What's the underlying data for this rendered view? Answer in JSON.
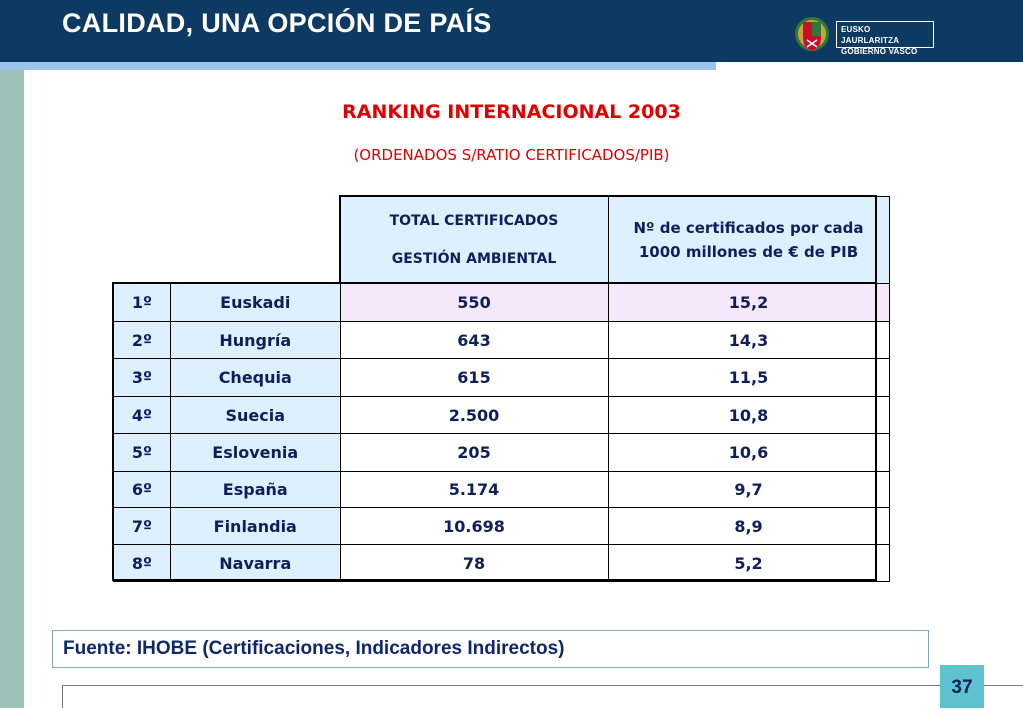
{
  "header": {
    "title": "CALIDAD, UNA OPCIÓN DE PAÍS",
    "logo_line1": "EUSKO JAURLARITZA",
    "logo_line2": "GOBIERNO VASCO"
  },
  "slide": {
    "title": "RANKING INTERNACIONAL 2003",
    "subtitle": "(ORDENADOS S/RATIO CERTIFICADOS/PIB)"
  },
  "table": {
    "col1_header_line1": "TOTAL CERTIFICADOS",
    "col1_header_line2": "GESTIÓN AMBIENTAL",
    "col2_header": "Nº de certificados por cada 1000 millones de € de PIB",
    "rows": [
      {
        "rank": "1º",
        "name": "Euskadi",
        "total": "550",
        "ratio": "15,2"
      },
      {
        "rank": "2º",
        "name": "Hungría",
        "total": "643",
        "ratio": "14,3"
      },
      {
        "rank": "3º",
        "name": "Chequia",
        "total": "615",
        "ratio": "11,5"
      },
      {
        "rank": "4º",
        "name": "Suecia",
        "total": "2.500",
        "ratio": "10,8"
      },
      {
        "rank": "5º",
        "name": "Eslovenia",
        "total": "205",
        "ratio": "10,6"
      },
      {
        "rank": "6º",
        "name": "España",
        "total": "5.174",
        "ratio": "9,7"
      },
      {
        "rank": "7º",
        "name": "Finlandia",
        "total": "10.698",
        "ratio": "8,9"
      },
      {
        "rank": "8º",
        "name": "Navarra",
        "total": "78",
        "ratio": "5,2"
      }
    ]
  },
  "footer": {
    "source": "Fuente: IHOBE (Certificaciones, Indicadores Indirectos)",
    "page_number": "37"
  },
  "colors": {
    "header_bg": "#0d3a63",
    "accent_bar": "#9cc3ea",
    "left_bar": "#9dc3b8",
    "title_red": "#e00000",
    "cell_blue": "#ddf0ff",
    "highlight_row": "#f5e8fa",
    "page_badge": "#5fc2cf"
  }
}
